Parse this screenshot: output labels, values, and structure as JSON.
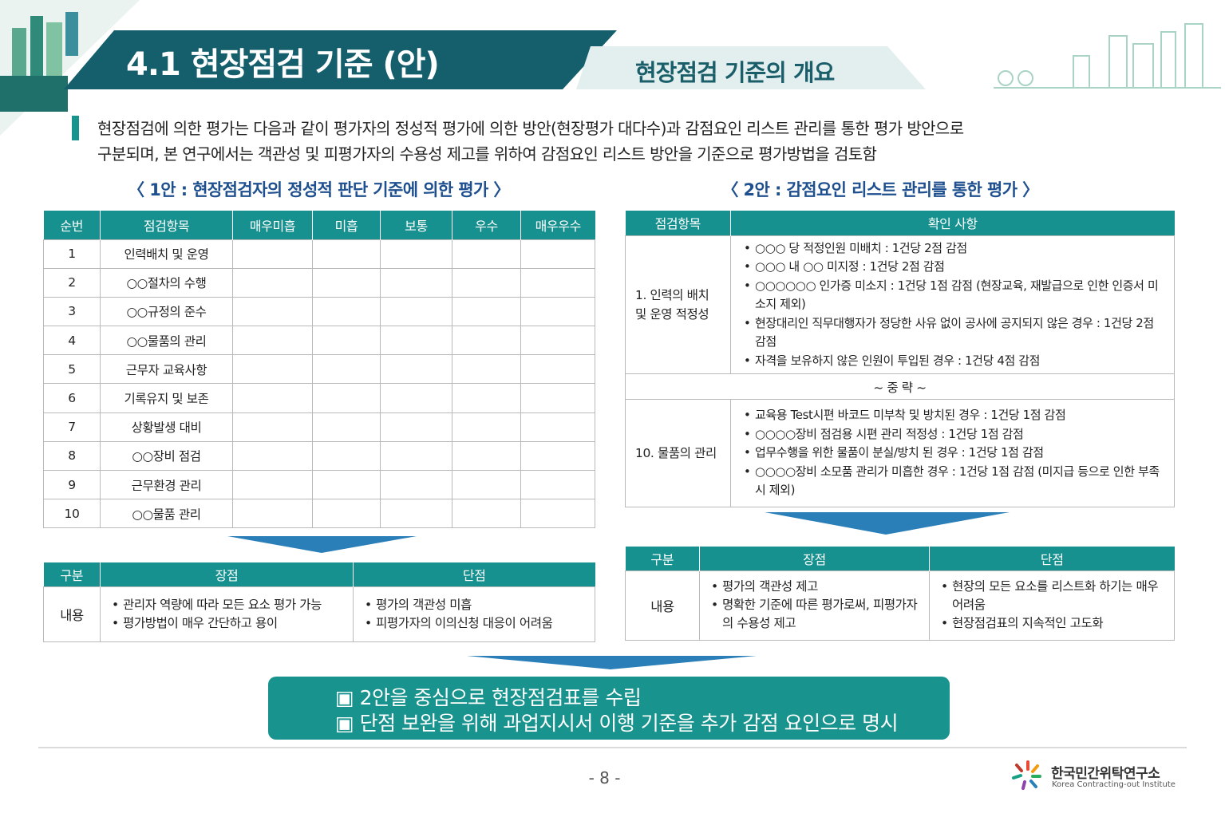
{
  "header": {
    "title": "4.1 현장점검 기준 (안)",
    "subtitle": "현장점검 기준의 개요"
  },
  "intro": [
    "현장점검에 의한 평가는 다음과 같이 평가자의 정성적 평가에 의한 방안(현장평가 대다수)과 감점요인 리스트 관리를 통한 평가 방안으로",
    "구분되며, 본 연구에서는 객관성 및 피평가자의 수용성 제고를 위하여 감점요인 리스트 방안을 기준으로 평가방법을 검토함"
  ],
  "plan1": {
    "title": "〈 1안 : 현장점검자의 정성적 판단 기준에 의한 평가 〉",
    "table": {
      "headers": [
        "순번",
        "점검항목",
        "매우미흡",
        "미흡",
        "보통",
        "우수",
        "매우우수"
      ],
      "rows": [
        [
          "1",
          "인력배치 및 운영"
        ],
        [
          "2",
          "○○절차의 수행"
        ],
        [
          "3",
          "○○규정의 준수"
        ],
        [
          "4",
          "○○물품의 관리"
        ],
        [
          "5",
          "근무자 교육사항"
        ],
        [
          "6",
          "기록유지 및 보존"
        ],
        [
          "7",
          "상황발생 대비"
        ],
        [
          "8",
          "○○장비 점검"
        ],
        [
          "9",
          "근무환경 관리"
        ],
        [
          "10",
          "○○물품 관리"
        ]
      ]
    },
    "evaluation": {
      "headers": [
        "구분",
        "장점",
        "단점"
      ],
      "label": "내용",
      "pros": [
        "관리자 역량에 따라 모든 요소 평가 가능",
        "평가방법이 매우 간단하고 용이"
      ],
      "cons": [
        "평가의 객관성 미흡",
        "피평가자의 이의신청 대응이 어려움"
      ]
    }
  },
  "plan2": {
    "title": "〈 2안 : 감점요인 리스트 관리를 통한 평가 〉",
    "table": {
      "headers": [
        "점검항목",
        "확인 사항"
      ],
      "rows": [
        {
          "item": "1. 인력의 배치 및 운영 적정성",
          "checks": [
            "○○○ 당 적정인원 미배치 : 1건당 2점 감점",
            "○○○ 내 ○○ 미지정 : 1건당 2점 감점",
            "○○○○○○ 인가증 미소지 : 1건당 1점 감점 (현장교육, 재발급으로 인한 인증서 미소지 제외)",
            "현장대리인 직무대행자가 정당한 사유 없이 공사에 공지되지 않은 경우 : 1건당 2점 감점",
            "자격을 보유하지 않은 인원이 투입된 경우 : 1건당 4점 감점"
          ]
        },
        {
          "note": "~ 중 략 ~"
        },
        {
          "item": "10. 물품의 관리",
          "checks": [
            "교육용 Test시편 바코드 미부착 및 방치된 경우 : 1건당 1점 감점",
            "○○○○장비 점검용 시편 관리 적정성 : 1건당 1점 감점",
            "업무수행을 위한 물품이 분실/방치 된 경우 : 1건당 1점 감점",
            "○○○○장비 소모품 관리가 미흡한 경우 : 1건당 1점 감점 (미지급 등으로 인한 부족 시 제외)"
          ]
        }
      ]
    },
    "evaluation": {
      "headers": [
        "구분",
        "장점",
        "단점"
      ],
      "label": "내용",
      "pros": [
        "평가의 객관성 제고",
        "명확한 기준에 따른 평가로써, 피평가자의 수용성 제고"
      ],
      "cons": [
        "현장의 모든 요소를 리스트화 하기는 매우 어려움",
        "현장점검표의 지속적인 고도화"
      ]
    }
  },
  "conclusion": [
    "▣ 2안을 중심으로 현장점검표를 수립",
    "▣ 단점 보완을 위해 과업지시서 이행 기준을 추가 감점 요인으로 명시"
  ],
  "footer": {
    "page": "- 8 -",
    "org": "한국민간위탁연구소",
    "org_en": "Korea Contracting-out Institute"
  }
}
